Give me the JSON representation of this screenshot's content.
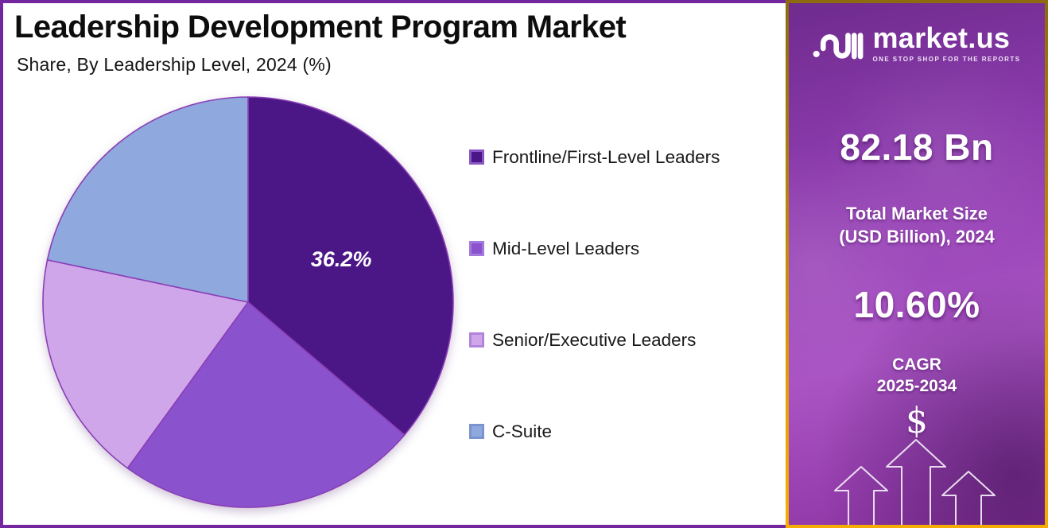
{
  "header": {
    "title": "Leadership Development Program Market",
    "subtitle": "Share, By Leadership Level, 2024 (%)"
  },
  "chart_data": {
    "type": "pie",
    "title": "Leadership Development Program Market Share, By Leadership Level, 2024 (%)",
    "unit": "%",
    "labels": [
      "Frontline/First-Level Leaders",
      "Mid-Level Leaders",
      "Senior/Executive Leaders",
      "C-Suite"
    ],
    "values": [
      36.2,
      23.8,
      18.3,
      21.7
    ],
    "data_labels": [
      "36.2%",
      null,
      null,
      null
    ],
    "colors": [
      "#4b1686",
      "#8b52ce",
      "#d0a6eb",
      "#8fa8de"
    ],
    "swatch_border_colors": [
      "#8a56c5",
      "#a379dd",
      "#b183da",
      "#7b93cf"
    ],
    "slice_outline_color": "#8a3fb5",
    "start_angle_deg": 0,
    "direction": "clockwise",
    "legend_position": "right"
  },
  "sidebar": {
    "logo": {
      "brand": "market.us",
      "tagline": "ONE STOP SHOP FOR THE REPORTS"
    },
    "market_size_value": "82.18 Bn",
    "market_size_label_line1": "Total Market Size",
    "market_size_label_line2": "(USD Billion), 2024",
    "cagr_value": "10.60%",
    "cagr_label_line1": "CAGR",
    "cagr_label_line2": "2025-2034",
    "dollar_symbol": "$",
    "colors": {
      "border_gold": "#d9940a",
      "background_purple_top": "#6f2b8e",
      "background_purple_bottom": "#aa54c4"
    }
  },
  "frame": {
    "chart_border_color": "#7226a0",
    "chart_background": "#ffffff"
  }
}
